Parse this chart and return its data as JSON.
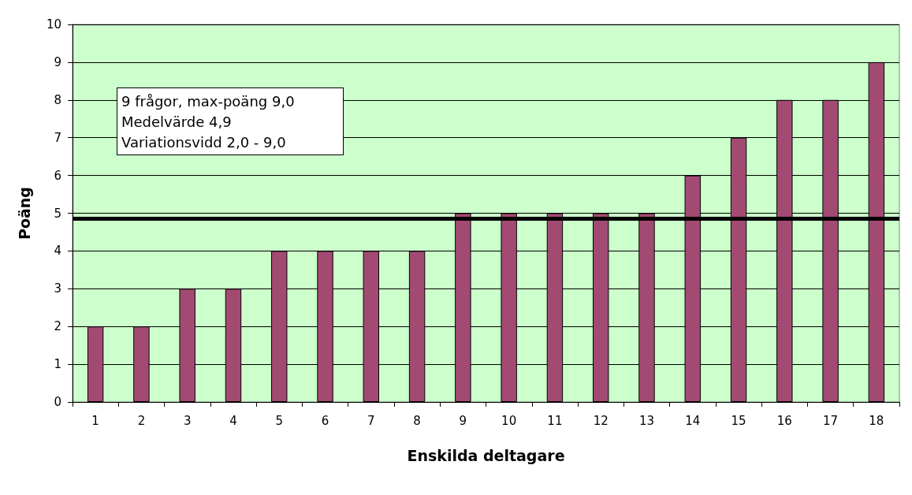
{
  "chart_data": {
    "type": "bar",
    "xlabel": "Enskilda deltagare",
    "ylabel": "Poäng",
    "categories": [
      "1",
      "2",
      "3",
      "4",
      "5",
      "6",
      "7",
      "8",
      "9",
      "10",
      "11",
      "12",
      "13",
      "14",
      "15",
      "16",
      "17",
      "18"
    ],
    "values": [
      2,
      2,
      3,
      3,
      4,
      4,
      4,
      4,
      5,
      5,
      5,
      5,
      5,
      6,
      7,
      8,
      8,
      9
    ],
    "color": "#a34a73",
    "ylim": [
      0,
      10
    ],
    "yticks": [
      0,
      1,
      2,
      3,
      4,
      5,
      6,
      7,
      8,
      9,
      10
    ],
    "grid": "y",
    "ref_lines": [
      {
        "axis": "y",
        "value": 4.85,
        "color": "#000000"
      }
    ],
    "annotations": [
      "9 frågor, max-poäng 9,0",
      "Medelvärde 4,9",
      "Variationsvidd 2,0 - 9,0"
    ]
  }
}
